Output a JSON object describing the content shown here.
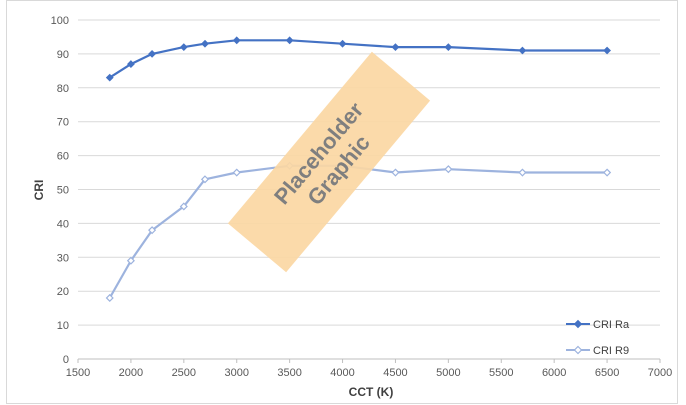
{
  "chart_data": {
    "type": "line",
    "xlabel": "CCT (K)",
    "ylabel": "CRI",
    "xlim": [
      1500,
      7000
    ],
    "ylim": [
      0,
      100
    ],
    "x_ticks": [
      1500,
      2000,
      2500,
      3000,
      3500,
      4000,
      4500,
      5000,
      5500,
      6000,
      6500,
      7000
    ],
    "y_ticks": [
      0,
      10,
      20,
      30,
      40,
      50,
      60,
      70,
      80,
      90,
      100
    ],
    "grid": "horizontal",
    "legend_position": "bottom-right",
    "series": [
      {
        "name": "CRI Ra",
        "color": "#4472c4",
        "marker": "filled-diamond",
        "x": [
          1800,
          2000,
          2200,
          2500,
          2700,
          3000,
          3500,
          4000,
          4500,
          5000,
          5700,
          6500
        ],
        "values": [
          83,
          87,
          90,
          92,
          93,
          94,
          94,
          93,
          92,
          92,
          91,
          91
        ]
      },
      {
        "name": "CRI R9",
        "color": "#9db3de",
        "marker": "hollow-diamond",
        "x": [
          1800,
          2000,
          2200,
          2500,
          2700,
          3000,
          3500,
          4000,
          4500,
          5000,
          5700,
          6500
        ],
        "values": [
          18,
          29,
          38,
          45,
          53,
          55,
          57,
          57,
          55,
          56,
          55,
          55
        ]
      }
    ]
  },
  "overlay": {
    "line1": "Placeholder",
    "line2": "Graphic",
    "color": "#fbd7a3"
  }
}
